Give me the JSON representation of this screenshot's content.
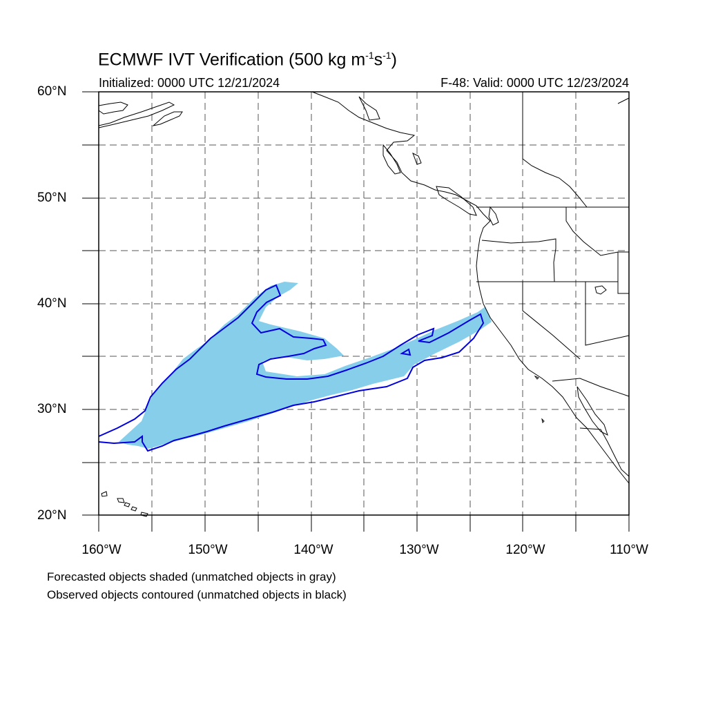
{
  "title": {
    "main": "ECMWF IVT Verification (500 kg m",
    "sup1": "-1",
    "mid": "s",
    "sup2": "-1",
    "end": ")"
  },
  "subtitle": {
    "initialized": "Initialized: 0000 UTC 12/21/2024",
    "valid": "F-48: Valid: 0000 UTC 12/23/2024"
  },
  "map": {
    "lon_range": [
      -160,
      -110
    ],
    "lat_range": [
      20,
      60
    ],
    "lat_labels": [
      "60°N",
      "50°N",
      "40°N",
      "30°N",
      "20°N"
    ],
    "lon_labels": [
      "160°W",
      "150°W",
      "140°W",
      "130°W",
      "120°W",
      "110°W"
    ],
    "grid": "dashed every 5 degrees",
    "forecast_fill_color": "#87ceeb",
    "observed_contour_color": "#0000dd"
  },
  "legend": {
    "line1": "Forecasted objects shaded (unmatched objects in gray)",
    "line2": "Observed objects contoured (unmatched objects in black)"
  }
}
